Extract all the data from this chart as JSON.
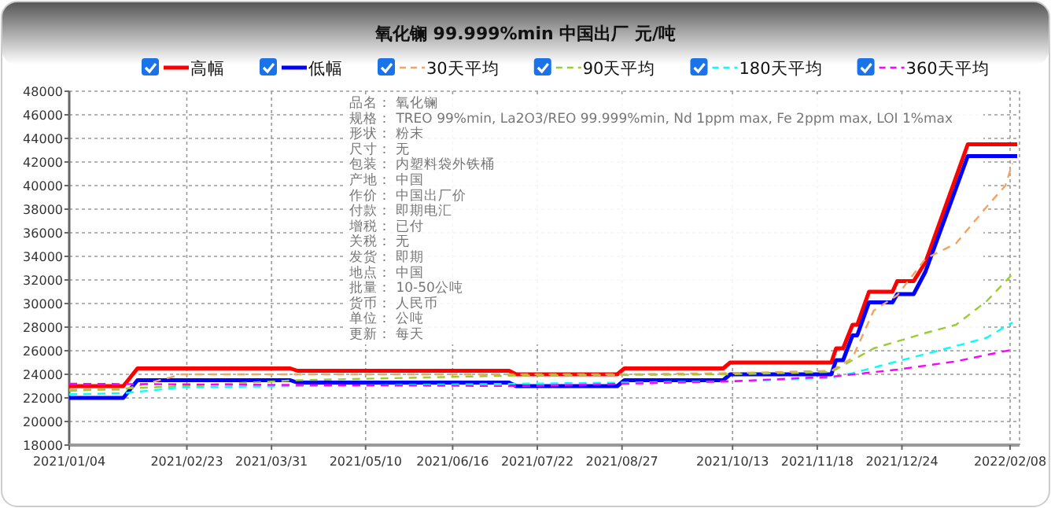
{
  "chart_data": {
    "type": "line",
    "title": "氧化镧 99.999%min 中国出厂 元/吨",
    "xlim": [
      "2021-01-04",
      "2022-02-12"
    ],
    "xticks": [
      {
        "value": "2021-01-04",
        "label": "2021/01/04"
      },
      {
        "value": "2021-02-23",
        "label": "2021/02/23"
      },
      {
        "value": "2021-03-31",
        "label": "2021/03/31"
      },
      {
        "value": "2021-05-10",
        "label": "2021/05/10"
      },
      {
        "value": "2021-06-16",
        "label": "2021/06/16"
      },
      {
        "value": "2021-07-22",
        "label": "2021/07/22"
      },
      {
        "value": "2021-08-27",
        "label": "2021/08/27"
      },
      {
        "value": "2021-10-13",
        "label": "2021/10/13"
      },
      {
        "value": "2021-11-18",
        "label": "2021/11/18"
      },
      {
        "value": "2021-12-24",
        "label": "2021/12/24"
      },
      {
        "value": "2022-02-08",
        "label": "2022/02/08"
      }
    ],
    "ylim": [
      18000,
      48000
    ],
    "yticks": [
      18000,
      20000,
      22000,
      24000,
      26000,
      28000,
      30000,
      32000,
      34000,
      36000,
      38000,
      40000,
      42000,
      44000,
      46000,
      48000
    ],
    "grid": true,
    "legend": "top",
    "marker": "none",
    "series": [
      {
        "name": "高幅",
        "color": "#ff0000",
        "line_style": "solid",
        "x": [
          "2021-01-04",
          "2021-01-27",
          "2021-02-02",
          "2021-04-08",
          "2021-04-11",
          "2021-07-10",
          "2021-07-13",
          "2021-08-25",
          "2021-08-28",
          "2021-10-09",
          "2021-10-12",
          "2021-11-24",
          "2021-11-26",
          "2021-11-29",
          "2021-12-03",
          "2021-12-05",
          "2021-12-10",
          "2021-12-20",
          "2021-12-22",
          "2021-12-29",
          "2022-01-03",
          "2022-01-21",
          "2022-02-11"
        ],
        "values": [
          23000,
          23000,
          24500,
          24500,
          24300,
          24300,
          24000,
          24000,
          24500,
          24500,
          25000,
          25000,
          26200,
          26200,
          28200,
          28200,
          31000,
          31000,
          31900,
          31900,
          33500,
          43500,
          43500
        ]
      },
      {
        "name": "低幅",
        "color": "#0000ff",
        "line_style": "solid",
        "x": [
          "2021-01-04",
          "2021-01-27",
          "2021-02-02",
          "2021-04-08",
          "2021-04-11",
          "2021-07-10",
          "2021-07-13",
          "2021-08-25",
          "2021-08-28",
          "2021-10-09",
          "2021-10-12",
          "2021-11-24",
          "2021-11-26",
          "2021-11-29",
          "2021-12-03",
          "2021-12-05",
          "2021-12-10",
          "2021-12-20",
          "2021-12-22",
          "2021-12-29",
          "2022-01-03",
          "2022-01-21",
          "2022-02-11"
        ],
        "values": [
          22000,
          22000,
          23500,
          23500,
          23300,
          23300,
          23000,
          23000,
          23500,
          23500,
          24000,
          24000,
          25200,
          25200,
          27300,
          27300,
          30100,
          30100,
          30800,
          30800,
          32700,
          42500,
          42500
        ]
      },
      {
        "name": "30天平均",
        "color": "#f4a460",
        "line_style": "dashed",
        "x": [
          "2021-01-04",
          "2021-01-27",
          "2021-02-21",
          "2021-08-28",
          "2021-10-12",
          "2021-11-24",
          "2021-12-03",
          "2021-12-12",
          "2021-12-22",
          "2022-01-03",
          "2022-01-16",
          "2022-01-29",
          "2022-02-06",
          "2022-02-09"
        ],
        "values": [
          22700,
          22700,
          24000,
          24000,
          24100,
          24300,
          25400,
          29400,
          30700,
          33800,
          35100,
          38200,
          40000,
          41900
        ]
      },
      {
        "name": "90天平均",
        "color": "#9acd32",
        "line_style": "dashed",
        "x": [
          "2021-01-04",
          "2021-02-21",
          "2021-04-11",
          "2021-07-13",
          "2021-10-12",
          "2021-11-24",
          "2021-12-12",
          "2022-01-03",
          "2022-01-16",
          "2022-01-29",
          "2022-02-09"
        ],
        "values": [
          22600,
          23000,
          23500,
          23900,
          24000,
          24200,
          26200,
          27500,
          28200,
          30200,
          32500
        ]
      },
      {
        "name": "180天平均",
        "color": "#00ffff",
        "line_style": "dashed",
        "x": [
          "2021-01-04",
          "2021-01-27",
          "2021-02-21",
          "2021-07-13",
          "2021-10-12",
          "2021-11-24",
          "2021-12-03",
          "2021-12-22",
          "2022-01-16",
          "2022-01-29",
          "2022-02-09"
        ],
        "values": [
          22300,
          22400,
          22900,
          23200,
          23400,
          23700,
          24100,
          25100,
          26400,
          27100,
          28400
        ]
      },
      {
        "name": "360天平均",
        "color": "#ff00ff",
        "line_style": "dashed",
        "x": [
          "2021-01-04",
          "2021-07-13",
          "2021-10-12",
          "2021-11-24",
          "2021-12-22",
          "2022-01-16",
          "2022-02-09"
        ],
        "values": [
          23200,
          23000,
          23400,
          23800,
          24400,
          25100,
          26100
        ]
      }
    ],
    "annotations": [
      "品名：  氧化镧",
      "规格：  TREO 99%min, La2O3/REO 99.999%min, Nd 1ppm max, Fe 2ppm max, LOI 1%max",
      "形状：  粉末",
      "尺寸：  无",
      "包装：  内塑料袋外铁桶",
      "产地：  中国",
      "作价：  中国出厂价",
      "付款：  即期电汇",
      "增税：  已付",
      "关税：  无",
      "发货：  即期",
      "地点：  中国",
      "批量：  10-50公吨",
      "货币：  人民币",
      "单位：  公吨",
      "更新：  每天"
    ]
  }
}
